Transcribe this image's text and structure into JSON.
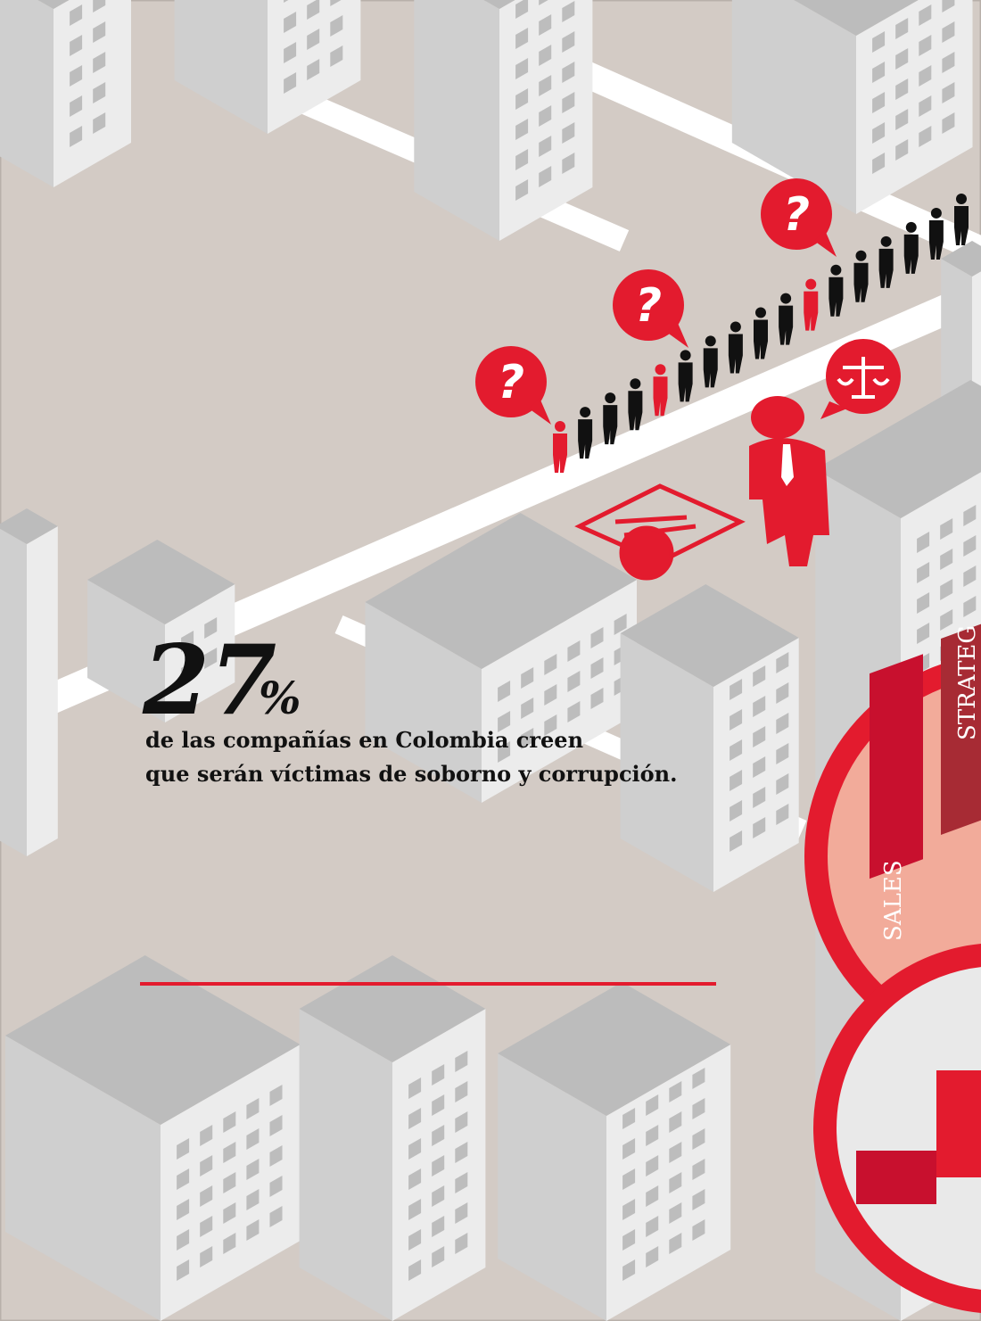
{
  "stat": {
    "number": 27,
    "unit": "%",
    "lines": [
      "de las compañías en Colombia creen",
      "que serán víctimas de soborno y corrupción."
    ]
  },
  "bubbles": [
    "?",
    "?",
    "?"
  ],
  "signs": [
    "SALES",
    "STRATEG"
  ]
}
